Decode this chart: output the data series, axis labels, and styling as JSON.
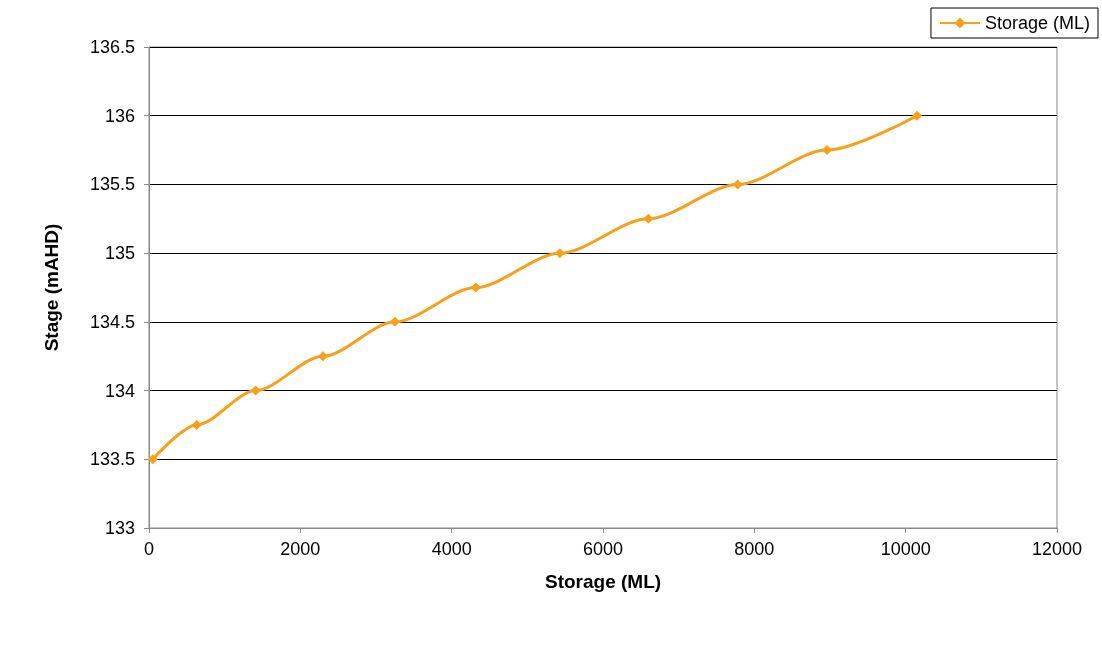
{
  "chart_data": {
    "type": "line",
    "xlabel": "Storage (ML)",
    "ylabel": "Stage (mAHD)",
    "x": [
      50,
      630,
      1410,
      2300,
      3250,
      4320,
      5430,
      6600,
      7780,
      8960,
      10150
    ],
    "series": [
      {
        "name": "Storage (ML)",
        "color": "#f9a01b",
        "values": [
          133.5,
          133.75,
          134,
          134.25,
          134.5,
          134.75,
          135,
          135.25,
          135.5,
          135.75,
          136
        ]
      }
    ],
    "xlim": [
      0,
      12000
    ],
    "xticks": [
      0,
      2000,
      4000,
      6000,
      8000,
      10000,
      12000
    ],
    "ylim": [
      133,
      136.5
    ],
    "yticks": [
      133,
      133.5,
      134,
      134.5,
      135,
      135.5,
      136,
      136.5
    ],
    "grid": "y",
    "legend": "top right",
    "marker": "diamond",
    "line_style": "solid"
  }
}
